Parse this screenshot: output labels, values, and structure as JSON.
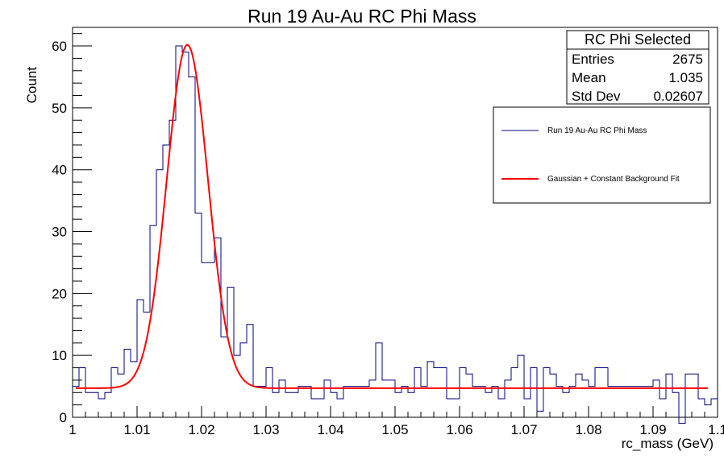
{
  "chart_data": {
    "type": "line",
    "title": "Run 19 Au-Au RC Phi Mass",
    "xlabel": "rc_mass (GeV)",
    "ylabel": "Count",
    "xlim": [
      1.0,
      1.1
    ],
    "ylim": [
      0,
      63
    ],
    "x_ticks": [
      1,
      1.01,
      1.02,
      1.03,
      1.04,
      1.05,
      1.06,
      1.07,
      1.08,
      1.09,
      1.1
    ],
    "x_tick_labels": [
      "1",
      "1.01",
      "1.02",
      "1.03",
      "1.04",
      "1.05",
      "1.06",
      "1.07",
      "1.08",
      "1.09",
      "1.1"
    ],
    "y_ticks": [
      0,
      10,
      20,
      30,
      40,
      50,
      60
    ],
    "y_tick_labels": [
      "0",
      "10",
      "20",
      "30",
      "40",
      "50",
      "60"
    ],
    "grid": false,
    "legend_position": "top-right",
    "stats_box": {
      "title": "RC Phi Selected",
      "rows": [
        {
          "label": "Entries",
          "value": "2675"
        },
        {
          "label": "Mean",
          "value": "1.035"
        },
        {
          "label": "Std Dev",
          "value": "0.02607"
        }
      ]
    },
    "series": [
      {
        "name": "Run 19 Au-Au RC Phi Mass",
        "kind": "histogram",
        "color": "#000080",
        "bin_width": 0.001,
        "bin_start": 1.0,
        "values": [
          5,
          8,
          4,
          4,
          3,
          4,
          8,
          7,
          11,
          9,
          19,
          17,
          31,
          40,
          44,
          48,
          60,
          59,
          55,
          33,
          25,
          25,
          29,
          13,
          21,
          10,
          12,
          15,
          5,
          5,
          8,
          4,
          6,
          4,
          4,
          5,
          5,
          3,
          3,
          6,
          4,
          3,
          5,
          5,
          5,
          5,
          6,
          12,
          6,
          6,
          4,
          5,
          4,
          8,
          5,
          9,
          8,
          8,
          3,
          3,
          8,
          7,
          5,
          5,
          4,
          5,
          3,
          6,
          8,
          10,
          3,
          8,
          1,
          8,
          7,
          5,
          4,
          5,
          7,
          6,
          5,
          8,
          8,
          5,
          5,
          5,
          5,
          5,
          5,
          5,
          6,
          3,
          7,
          4,
          -1,
          7,
          7,
          3,
          2,
          3
        ]
      },
      {
        "name": "Gaussian + Constant Background Fit",
        "kind": "fit",
        "color": "#ff0000",
        "mean": 1.0178,
        "sigma": 0.0032,
        "amplitude": 55.5,
        "background": 4.7
      }
    ]
  }
}
